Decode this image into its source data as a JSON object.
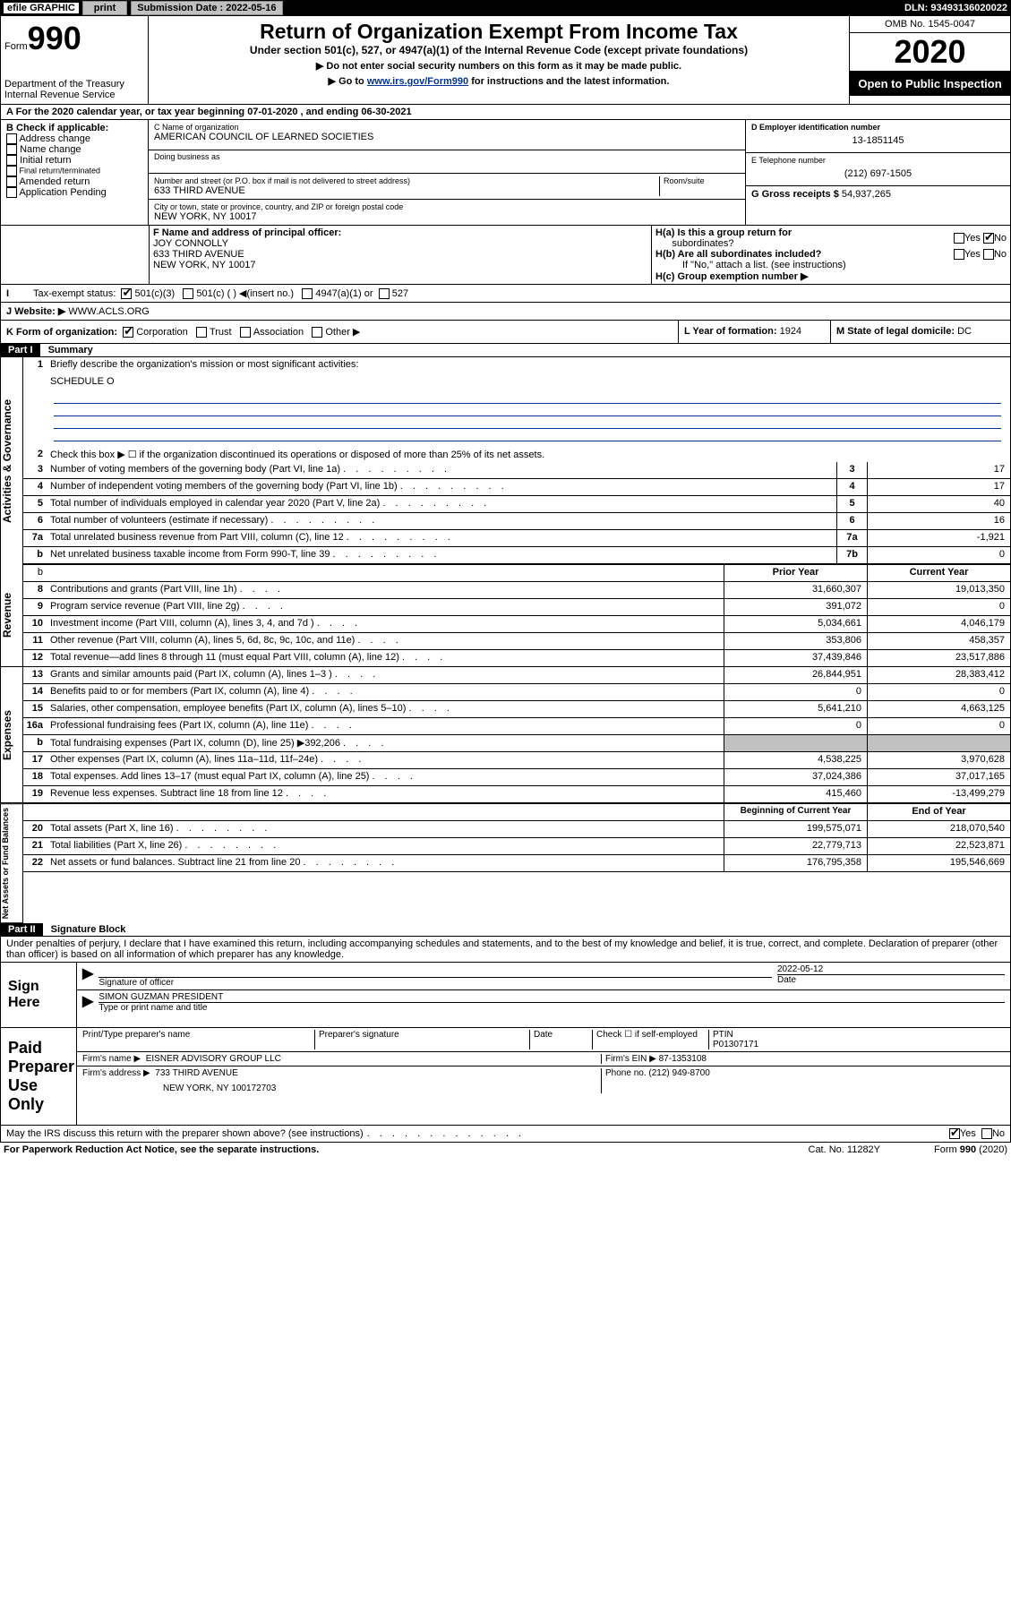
{
  "topbar": {
    "efile": "efile GRAPHIC",
    "print": "print",
    "submission_label": "Submission Date : 2022-05-16",
    "dln": "DLN: 93493136020022"
  },
  "header": {
    "form_prefix": "Form",
    "form_number": "990",
    "dept": "Department of the Treasury",
    "irs": "Internal Revenue Service",
    "title": "Return of Organization Exempt From Income Tax",
    "subtitle": "Under section 501(c), 527, or 4947(a)(1) of the Internal Revenue Code (except private foundations)",
    "note1": "▶ Do not enter social security numbers on this form as it may be made public.",
    "note2_pre": "▶ Go to ",
    "note2_link": "www.irs.gov/Form990",
    "note2_post": " for instructions and the latest information.",
    "omb": "OMB No. 1545-0047",
    "year": "2020",
    "inspect": "Open to Public Inspection"
  },
  "period": {
    "text": "A For the 2020 calendar year, or tax year beginning 07-01-2020   , and ending 06-30-2021"
  },
  "box_b": {
    "label": "B Check if applicable:",
    "items": [
      "Address change",
      "Name change",
      "Initial return",
      "Final return/terminated",
      "Amended return",
      "Application Pending"
    ]
  },
  "box_c": {
    "name_label": "C Name of organization",
    "name": "AMERICAN COUNCIL OF LEARNED SOCIETIES",
    "dba_label": "Doing business as",
    "addr_label": "Number and street (or P.O. box if mail is not delivered to street address)",
    "room_label": "Room/suite",
    "addr": "633 THIRD AVENUE",
    "city_label": "City or town, state or province, country, and ZIP or foreign postal code",
    "city": "NEW YORK, NY  10017"
  },
  "box_d": {
    "label": "D Employer identification number",
    "value": "13-1851145"
  },
  "box_e": {
    "label": "E Telephone number",
    "value": "(212) 697-1505"
  },
  "box_g": {
    "label": "G Gross receipts $",
    "value": "54,937,265"
  },
  "box_f": {
    "label": "F Name and address of principal officer:",
    "name": "JOY CONNOLLY",
    "addr1": "633 THIRD AVENUE",
    "addr2": "NEW YORK, NY  10017"
  },
  "box_h": {
    "a_label": "H(a)  Is this a group return for",
    "a_label2": "subordinates?",
    "a_yes": "Yes",
    "a_no": "No",
    "b_label": "H(b)  Are all subordinates included?",
    "b_note": "If \"No,\" attach a list. (see instructions)",
    "c_label": "H(c)  Group exemption number ▶"
  },
  "tax_status": {
    "label": "Tax-exempt status:",
    "c3": "501(c)(3)",
    "c": "501(c) (   ) ◀(insert no.)",
    "a1": "4947(a)(1) or",
    "527": "527"
  },
  "website": {
    "label": "J   Website: ▶",
    "value": "WWW.ACLS.ORG"
  },
  "box_k": {
    "label": "K Form of organization:",
    "corp": "Corporation",
    "trust": "Trust",
    "assoc": "Association",
    "other": "Other ▶"
  },
  "box_l": {
    "label": "L Year of formation:",
    "value": "1924"
  },
  "box_m": {
    "label": "M State of legal domicile:",
    "value": "DC"
  },
  "part1": {
    "hdr": "Part I",
    "title": "Summary",
    "vert1": "Activities & Governance",
    "vert2": "Revenue",
    "vert3": "Expenses",
    "vert4": "Net Assets or Fund Balances",
    "q1": "Briefly describe the organization's mission or most significant activities:",
    "q1val": "SCHEDULE O",
    "q2": "Check this box ▶ ☐  if the organization discontinued its operations or disposed of more than 25% of its net assets.",
    "lines_gov": [
      {
        "n": "3",
        "t": "Number of voting members of the governing body (Part VI, line 1a)",
        "box": "3",
        "v": "17"
      },
      {
        "n": "4",
        "t": "Number of independent voting members of the governing body (Part VI, line 1b)",
        "box": "4",
        "v": "17"
      },
      {
        "n": "5",
        "t": "Total number of individuals employed in calendar year 2020 (Part V, line 2a)",
        "box": "5",
        "v": "40"
      },
      {
        "n": "6",
        "t": "Total number of volunteers (estimate if necessary)",
        "box": "6",
        "v": "16"
      },
      {
        "n": "7a",
        "t": "Total unrelated business revenue from Part VIII, column (C), line 12",
        "box": "7a",
        "v": "-1,921"
      },
      {
        "n": "b",
        "t": "Net unrelated business taxable income from Form 990-T, line 39",
        "box": "7b",
        "v": "0"
      }
    ],
    "col_prior": "Prior Year",
    "col_current": "Current Year",
    "lines_rev": [
      {
        "n": "8",
        "t": "Contributions and grants (Part VIII, line 1h)",
        "p": "31,660,307",
        "c": "19,013,350"
      },
      {
        "n": "9",
        "t": "Program service revenue (Part VIII, line 2g)",
        "p": "391,072",
        "c": "0"
      },
      {
        "n": "10",
        "t": "Investment income (Part VIII, column (A), lines 3, 4, and 7d )",
        "p": "5,034,661",
        "c": "4,046,179"
      },
      {
        "n": "11",
        "t": "Other revenue (Part VIII, column (A), lines 5, 6d, 8c, 9c, 10c, and 11e)",
        "p": "353,806",
        "c": "458,357"
      },
      {
        "n": "12",
        "t": "Total revenue—add lines 8 through 11 (must equal Part VIII, column (A), line 12)",
        "p": "37,439,846",
        "c": "23,517,886"
      }
    ],
    "lines_exp": [
      {
        "n": "13",
        "t": "Grants and similar amounts paid (Part IX, column (A), lines 1–3 )",
        "p": "26,844,951",
        "c": "28,383,412"
      },
      {
        "n": "14",
        "t": "Benefits paid to or for members (Part IX, column (A), line 4)",
        "p": "0",
        "c": "0"
      },
      {
        "n": "15",
        "t": "Salaries, other compensation, employee benefits (Part IX, column (A), lines 5–10)",
        "p": "5,641,210",
        "c": "4,663,125"
      },
      {
        "n": "16a",
        "t": "Professional fundraising fees (Part IX, column (A), line 11e)",
        "p": "0",
        "c": "0"
      },
      {
        "n": "b",
        "t": "Total fundraising expenses (Part IX, column (D), line 25) ▶392,206",
        "p": "SHADE",
        "c": "SHADE"
      },
      {
        "n": "17",
        "t": "Other expenses (Part IX, column (A), lines 11a–11d, 11f–24e)",
        "p": "4,538,225",
        "c": "3,970,628"
      },
      {
        "n": "18",
        "t": "Total expenses. Add lines 13–17 (must equal Part IX, column (A), line 25)",
        "p": "37,024,386",
        "c": "37,017,165"
      },
      {
        "n": "19",
        "t": "Revenue less expenses. Subtract line 18 from line 12",
        "p": "415,460",
        "c": "-13,499,279"
      }
    ],
    "col_begin": "Beginning of Current Year",
    "col_end": "End of Year",
    "lines_net": [
      {
        "n": "20",
        "t": "Total assets (Part X, line 16)",
        "p": "199,575,071",
        "c": "218,070,540"
      },
      {
        "n": "21",
        "t": "Total liabilities (Part X, line 26)",
        "p": "22,779,713",
        "c": "22,523,871"
      },
      {
        "n": "22",
        "t": "Net assets or fund balances. Subtract line 21 from line 20",
        "p": "176,795,358",
        "c": "195,546,669"
      }
    ]
  },
  "part2": {
    "hdr": "Part II",
    "title": "Signature Block",
    "decl": "Under penalties of perjury, I declare that I have examined this return, including accompanying schedules and statements, and to the best of my knowledge and belief, it is true, correct, and complete. Declaration of preparer (other than officer) is based on all information of which preparer has any knowledge.",
    "sign_here": "Sign Here",
    "sig_officer": "Signature of officer",
    "sig_date": "2022-05-12",
    "sig_date_label": "Date",
    "officer_name": "SIMON GUZMAN  PRESIDENT",
    "officer_label": "Type or print name and title",
    "paid": "Paid Preparer Use Only",
    "prep_name_label": "Print/Type preparer's name",
    "prep_sig_label": "Preparer's signature",
    "date_label": "Date",
    "check_label": "Check ☐ if self-employed",
    "ptin_label": "PTIN",
    "ptin": "P01307171",
    "firm_name_label": "Firm's name   ▶",
    "firm_name": "EISNER ADVISORY GROUP LLC",
    "firm_ein_label": "Firm's EIN ▶",
    "firm_ein": "87-1353108",
    "firm_addr_label": "Firm's address ▶",
    "firm_addr1": "733 THIRD AVENUE",
    "firm_addr2": "NEW YORK, NY  100172703",
    "phone_label": "Phone no.",
    "phone": "(212) 949-8700",
    "discuss": "May the IRS discuss this return with the preparer shown above? (see instructions)",
    "yes": "Yes",
    "no": "No"
  },
  "footer": {
    "pra": "For Paperwork Reduction Act Notice, see the separate instructions.",
    "cat": "Cat. No. 11282Y",
    "form": "Form 990 (2020)"
  }
}
